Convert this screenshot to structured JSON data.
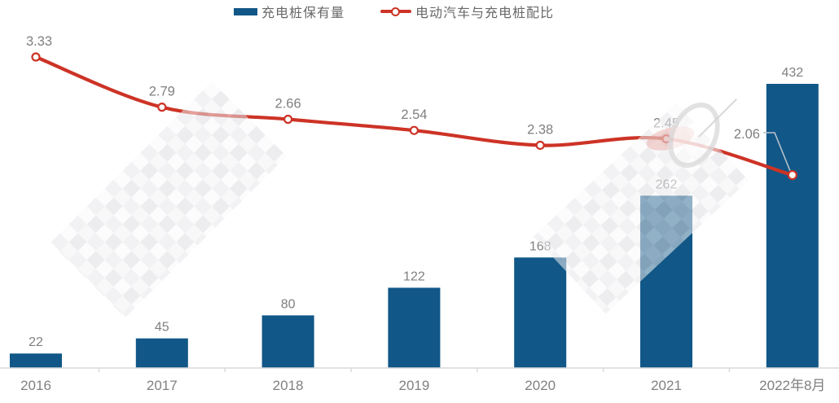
{
  "legend": {
    "items": [
      {
        "label": "充电桩保有量",
        "series_type": "bar"
      },
      {
        "label": "电动汽车与充电桩配比",
        "series_type": "line"
      }
    ]
  },
  "chart_data": {
    "type": "combo",
    "title": "",
    "categories": [
      "2016",
      "2017",
      "2018",
      "2019",
      "2020",
      "2021",
      "2022年8月"
    ],
    "series": [
      {
        "name": "充电桩保有量",
        "type": "bar",
        "values": [
          22,
          45,
          80,
          122,
          168,
          262,
          432
        ],
        "value_labels": [
          "22",
          "45",
          "80",
          "122",
          "168",
          "262",
          "432"
        ],
        "color": "#115787"
      },
      {
        "name": "电动汽车与充电桩配比",
        "type": "line",
        "values": [
          3.33,
          2.79,
          2.66,
          2.54,
          2.38,
          2.45,
          2.06
        ],
        "value_labels": [
          "3.33",
          "2.79",
          "2.66",
          "2.54",
          "2.38",
          "2.45",
          "2.06"
        ],
        "color": "#cd3326"
      }
    ],
    "bar_axis": {
      "min": 0,
      "max_data_value": 432,
      "axis_labels_hidden": true
    },
    "line_axis": {
      "min_data_value": 2.06,
      "max_data_value": 3.33,
      "axis_labels_hidden": true
    },
    "grid": false,
    "legend_position": "top",
    "x_axis": {
      "baseline": true,
      "ticks": "between-categories"
    },
    "annotations": {
      "last_line_point_callout": {
        "label": "2.06",
        "category": "2022年8月"
      }
    }
  },
  "colors": {
    "bar": "#115787",
    "line": "#cd3326",
    "marker_fill": "#ffffff",
    "value_label_text": "#7f7f7f",
    "category_label_text": "#808080",
    "legend_text": "#686868",
    "axis_line": "#d9d9d9",
    "callout_line": "#b9c2cb"
  }
}
